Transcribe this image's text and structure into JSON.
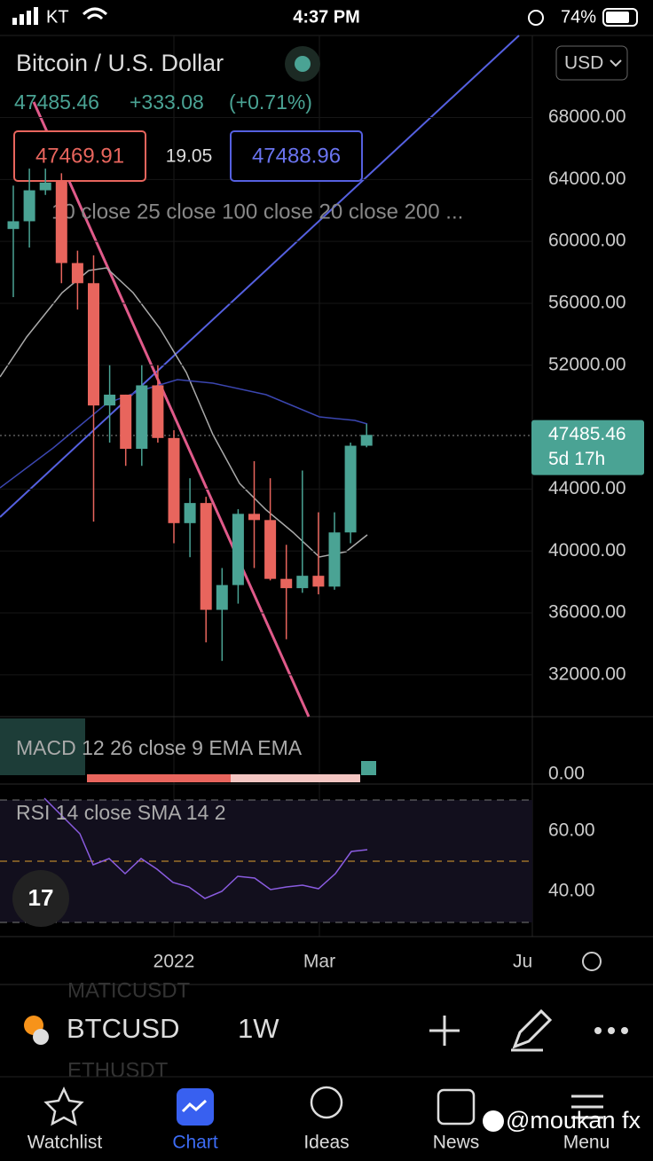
{
  "status_bar": {
    "carrier": "KT",
    "time": "4:37 PM",
    "battery": "74%"
  },
  "header": {
    "title": "Bitcoin / U.S. Dollar",
    "currency": "USD",
    "price": "47485.46",
    "change": "+333.08",
    "change_pct": "(+0.71%)"
  },
  "quote": {
    "bid": "47469.91",
    "spread": "19.05",
    "ask": "47488.96"
  },
  "indicators": "10 close 25 close 100 close 20 close 200 ...",
  "chart_data": {
    "type": "candlestick",
    "ylim": [
      29300,
      73300
    ],
    "yticks": [
      {
        "value": 68000,
        "label": "68000.00"
      },
      {
        "value": 64000,
        "label": "64000.00"
      },
      {
        "value": 60000,
        "label": "60000.00"
      },
      {
        "value": 56000,
        "label": "56000.00"
      },
      {
        "value": 52000,
        "label": "52000.00"
      },
      {
        "value": 44000,
        "label": "44000.00"
      },
      {
        "value": 40000,
        "label": "40000.00"
      },
      {
        "value": 36000,
        "label": "36000.00"
      },
      {
        "value": 32000,
        "label": "32000.00"
      }
    ],
    "up_color": "#4aa394",
    "down_color": "#e8655d",
    "candles": [
      [
        60800,
        63600,
        56400,
        61300
      ],
      [
        61300,
        64700,
        59600,
        63300
      ],
      [
        63300,
        64700,
        63000,
        63800
      ],
      [
        63900,
        64400,
        57300,
        58600
      ],
      [
        58600,
        59400,
        55600,
        57300
      ],
      [
        57300,
        59100,
        41900,
        49400
      ],
      [
        49400,
        52000,
        47000,
        50100
      ],
      [
        50100,
        50100,
        45500,
        46600
      ],
      [
        46600,
        52000,
        45500,
        50700
      ],
      [
        50700,
        52000,
        47000,
        47300
      ],
      [
        47300,
        47800,
        40500,
        41800
      ],
      [
        41800,
        44700,
        39600,
        43100
      ],
      [
        43100,
        43500,
        34100,
        36200
      ],
      [
        36200,
        38900,
        32900,
        37800
      ],
      [
        37800,
        42700,
        36600,
        42400
      ],
      [
        42400,
        45800,
        38900,
        42000
      ],
      [
        42000,
        44700,
        38100,
        38200
      ],
      [
        38200,
        40400,
        34300,
        37600
      ],
      [
        37600,
        45200,
        37300,
        38400
      ],
      [
        38400,
        42500,
        37200,
        37700
      ],
      [
        37700,
        42500,
        37500,
        41200
      ],
      [
        41200,
        47000,
        40500,
        46800
      ],
      [
        46800,
        48200,
        46700,
        47500
      ]
    ],
    "last_price": {
      "value": 47485.46,
      "label": "47485.46",
      "countdown": "5d 17h"
    },
    "x_labels": [
      "2022",
      "Mar",
      "Ju"
    ]
  },
  "macd": {
    "label": "MACD 12 26 close 9 EMA EMA",
    "tick": "0.00"
  },
  "rsi": {
    "label": "RSI 14 close SMA 14 2",
    "ticks": [
      "60.00",
      "40.00"
    ]
  },
  "ghost": [
    "MATICUSDT",
    "ETHUSDT"
  ],
  "symbol_bar": {
    "symbol": "BTCUSD",
    "interval": "1W"
  },
  "tabs": [
    "Watchlist",
    "Chart",
    "Ideas",
    "News",
    "Menu"
  ],
  "watermark": "@moukan fx"
}
